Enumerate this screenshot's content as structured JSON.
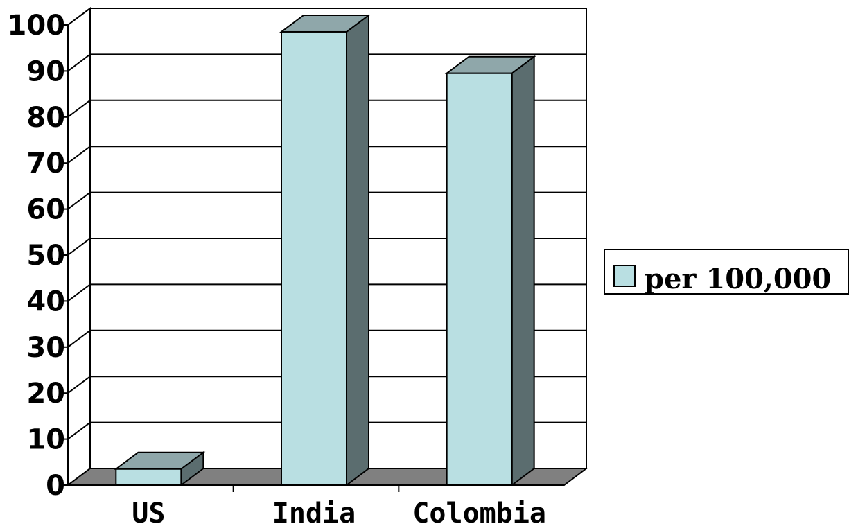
{
  "chart_data": {
    "type": "bar",
    "style": "3d-column",
    "categories": [
      "US",
      "India",
      "Colombia"
    ],
    "series": [
      {
        "name": "per 100,000",
        "values": [
          3.5,
          98.5,
          89.5
        ]
      }
    ],
    "ylim": [
      0,
      100
    ],
    "yticks": [
      "0",
      "10",
      "20",
      "30",
      "40",
      "50",
      "60",
      "70",
      "80",
      "90",
      "100"
    ],
    "grid": true,
    "legend": {
      "placement": "right",
      "label": "per 100,000"
    },
    "colors": {
      "bar_front": "#b9dfe2",
      "bar_top": "#8fa7aa",
      "bar_side": "#5b6d6f",
      "floor": "#808080",
      "grid": "#000000",
      "background": "#ffffff"
    }
  }
}
